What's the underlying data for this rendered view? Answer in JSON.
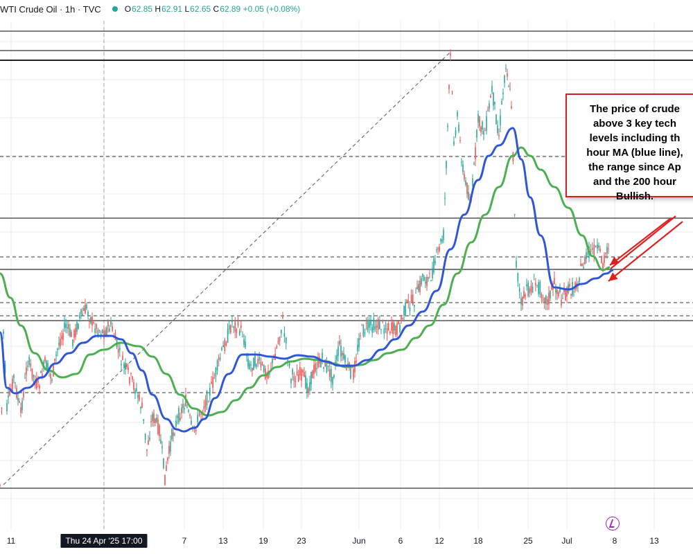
{
  "header": {
    "title": "WTI Crude Oil · 1h · TVC",
    "ohlc": [
      {
        "k": "O",
        "v": "62.85"
      },
      {
        "k": "H",
        "v": "62.91"
      },
      {
        "k": "L",
        "v": "62.65"
      },
      {
        "k": "C",
        "v": "62.89"
      }
    ],
    "change": "+0.05 (+0.08%)"
  },
  "annotation": {
    "lines": [
      "The price of crude",
      "above 3 key tech",
      "levels including th",
      "hour MA (blue line),",
      "the range since Ap",
      "and the 200 hour",
      "Bullish."
    ]
  },
  "colors": {
    "up": "#26a69a",
    "down": "#ef5350",
    "ma_blue": "#2f56d8",
    "ma_green": "#4caf50",
    "arrow_red": "#e01f1f",
    "grid": "#e9ebef",
    "level_line": "#333333"
  },
  "chart_data": {
    "type": "line",
    "title": "WTI Crude Oil · 1h · TVC",
    "x_tick_labels": [
      "11",
      "Thu 24 Apr '25  17:00",
      "7",
      "13",
      "19",
      "23",
      "Jun",
      "6",
      "12",
      "18",
      "25",
      "Jul",
      "8",
      "13"
    ],
    "series": [
      {
        "name": "",
        "color": "#2f56d8",
        "points": [
          [
            0,
            480
          ],
          [
            10,
            560
          ],
          [
            22,
            568
          ],
          [
            40,
            560
          ],
          [
            60,
            545
          ],
          [
            80,
            525
          ],
          [
            100,
            510
          ],
          [
            120,
            495
          ],
          [
            140,
            485
          ],
          [
            160,
            485
          ],
          [
            175,
            490
          ],
          [
            190,
            510
          ],
          [
            205,
            535
          ],
          [
            220,
            570
          ],
          [
            240,
            605
          ],
          [
            255,
            620
          ],
          [
            265,
            623
          ],
          [
            280,
            618
          ],
          [
            295,
            605
          ],
          [
            310,
            575
          ],
          [
            330,
            540
          ],
          [
            350,
            512
          ],
          [
            370,
            512
          ],
          [
            390,
            515
          ],
          [
            410,
            518
          ],
          [
            430,
            513
          ],
          [
            450,
            515
          ],
          [
            470,
            522
          ],
          [
            490,
            528
          ],
          [
            510,
            528
          ],
          [
            530,
            520
          ],
          [
            550,
            505
          ],
          [
            570,
            490
          ],
          [
            590,
            470
          ],
          [
            610,
            450
          ],
          [
            630,
            420
          ],
          [
            650,
            360
          ],
          [
            670,
            310
          ],
          [
            690,
            260
          ],
          [
            705,
            225
          ],
          [
            720,
            210
          ],
          [
            740,
            185
          ],
          [
            752,
            230
          ],
          [
            765,
            285
          ],
          [
            780,
            340
          ],
          [
            800,
            415
          ],
          [
            820,
            418
          ],
          [
            840,
            410
          ],
          [
            860,
            402
          ],
          [
            875,
            395
          ],
          [
            885,
            390
          ]
        ]
      },
      {
        "name": "",
        "color": "#4caf50",
        "points": [
          [
            0,
            395
          ],
          [
            15,
            430
          ],
          [
            30,
            470
          ],
          [
            50,
            510
          ],
          [
            70,
            535
          ],
          [
            90,
            545
          ],
          [
            110,
            540
          ],
          [
            130,
            512
          ],
          [
            150,
            505
          ],
          [
            175,
            495
          ],
          [
            200,
            500
          ],
          [
            220,
            515
          ],
          [
            240,
            540
          ],
          [
            260,
            570
          ],
          [
            280,
            590
          ],
          [
            300,
            600
          ],
          [
            320,
            595
          ],
          [
            340,
            578
          ],
          [
            360,
            560
          ],
          [
            380,
            542
          ],
          [
            400,
            530
          ],
          [
            420,
            522
          ],
          [
            440,
            518
          ],
          [
            460,
            520
          ],
          [
            480,
            525
          ],
          [
            500,
            530
          ],
          [
            520,
            527
          ],
          [
            540,
            520
          ],
          [
            560,
            510
          ],
          [
            580,
            505
          ],
          [
            600,
            488
          ],
          [
            620,
            470
          ],
          [
            640,
            440
          ],
          [
            660,
            395
          ],
          [
            680,
            350
          ],
          [
            700,
            310
          ],
          [
            720,
            270
          ],
          [
            740,
            225
          ],
          [
            752,
            213
          ],
          [
            765,
            225
          ],
          [
            780,
            245
          ],
          [
            800,
            270
          ],
          [
            820,
            300
          ],
          [
            840,
            340
          ],
          [
            855,
            370
          ],
          [
            870,
            390
          ],
          [
            880,
            386
          ]
        ]
      },
      {
        "name": "",
        "type": "candles",
        "trace": [
          [
            0,
            700
          ],
          [
            5,
            480
          ],
          [
            10,
            590
          ],
          [
            20,
            545
          ],
          [
            30,
            598
          ],
          [
            40,
            520
          ],
          [
            55,
            560
          ],
          [
            65,
            525
          ],
          [
            75,
            545
          ],
          [
            85,
            495
          ],
          [
            95,
            470
          ],
          [
            105,
            490
          ],
          [
            115,
            460
          ],
          [
            125,
            445
          ],
          [
            135,
            470
          ],
          [
            150,
            480
          ],
          [
            160,
            470
          ],
          [
            175,
            520
          ],
          [
            185,
            540
          ],
          [
            195,
            560
          ],
          [
            205,
            590
          ],
          [
            212,
            650
          ],
          [
            220,
            600
          ],
          [
            230,
            620
          ],
          [
            238,
            690
          ],
          [
            248,
            630
          ],
          [
            258,
            600
          ],
          [
            268,
            580
          ],
          [
            278,
            625
          ],
          [
            290,
            595
          ],
          [
            305,
            560
          ],
          [
            320,
            510
          ],
          [
            335,
            465
          ],
          [
            350,
            480
          ],
          [
            360,
            530
          ],
          [
            370,
            520
          ],
          [
            385,
            540
          ],
          [
            395,
            520
          ],
          [
            408,
            465
          ],
          [
            420,
            545
          ],
          [
            435,
            540
          ],
          [
            445,
            560
          ],
          [
            455,
            528
          ],
          [
            465,
            520
          ],
          [
            480,
            545
          ],
          [
            490,
            500
          ],
          [
            500,
            530
          ],
          [
            510,
            540
          ],
          [
            520,
            480
          ],
          [
            535,
            470
          ],
          [
            550,
            470
          ],
          [
            565,
            475
          ],
          [
            575,
            475
          ],
          [
            585,
            445
          ],
          [
            600,
            430
          ],
          [
            610,
            400
          ],
          [
            620,
            405
          ],
          [
            630,
            370
          ],
          [
            640,
            340
          ],
          [
            650,
            80
          ],
          [
            655,
            200
          ],
          [
            660,
            170
          ],
          [
            670,
            260
          ],
          [
            680,
            290
          ],
          [
            690,
            175
          ],
          [
            700,
            190
          ],
          [
            710,
            130
          ],
          [
            720,
            195
          ],
          [
            730,
            90
          ],
          [
            738,
            150
          ],
          [
            745,
            380
          ],
          [
            752,
            440
          ],
          [
            760,
            420
          ],
          [
            775,
            410
          ],
          [
            790,
            435
          ],
          [
            800,
            410
          ],
          [
            810,
            430
          ],
          [
            820,
            420
          ],
          [
            830,
            415
          ],
          [
            840,
            385
          ],
          [
            850,
            365
          ],
          [
            862,
            360
          ],
          [
            870,
            380
          ],
          [
            880,
            345
          ]
        ]
      }
    ],
    "levels": [
      {
        "y": 45,
        "style": "solid"
      },
      {
        "y": 73,
        "style": "solid"
      },
      {
        "y": 87,
        "style": "solid"
      },
      {
        "y": 226,
        "style": "dashed"
      },
      {
        "y": 315,
        "style": "solid"
      },
      {
        "y": 371,
        "style": "dashed"
      },
      {
        "y": 389,
        "style": "solid"
      },
      {
        "y": 437,
        "style": "dashed"
      },
      {
        "y": 456,
        "style": "dashed"
      },
      {
        "y": 463,
        "style": "solid"
      },
      {
        "y": 567,
        "style": "dashed"
      },
      {
        "y": 705,
        "style": "solid"
      }
    ],
    "trendline": [
      [
        5,
        700
      ],
      [
        650,
        75
      ]
    ],
    "vertical_marker_x": 150,
    "grid": true,
    "legend": "none"
  }
}
